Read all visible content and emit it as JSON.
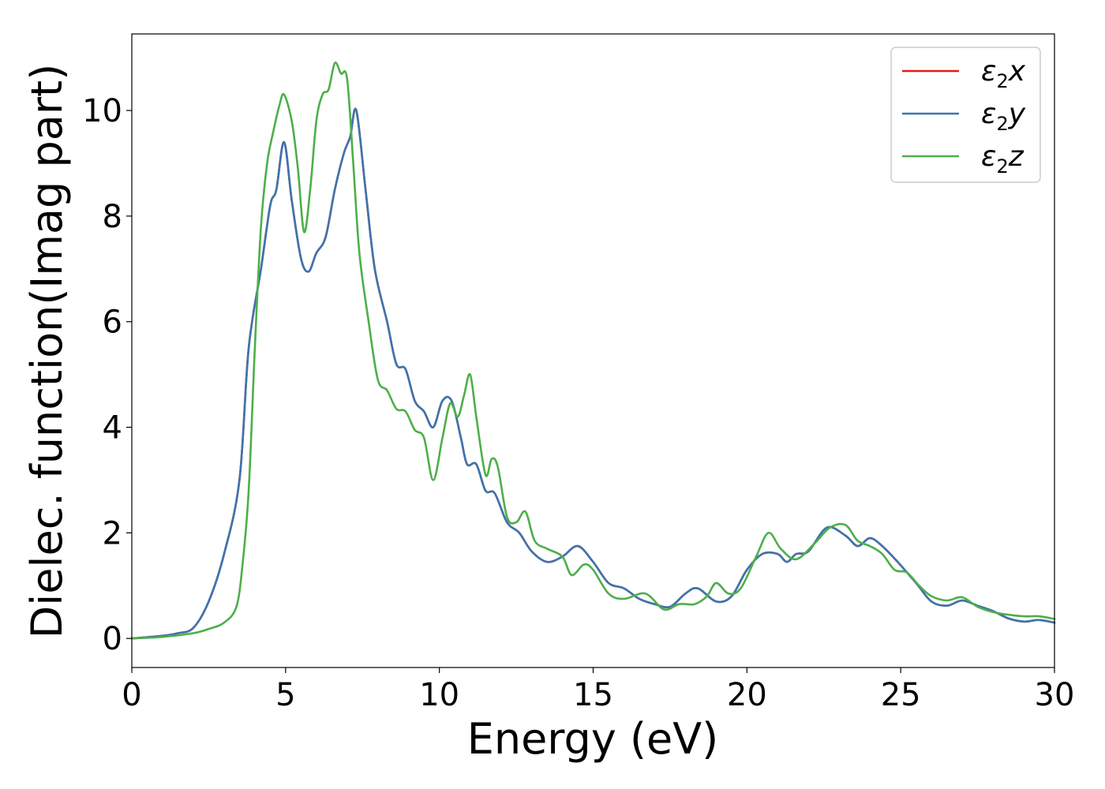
{
  "chart_data": {
    "type": "line",
    "xlabel": "Energy (eV)",
    "ylabel": "Dielec. function(Imag part)",
    "xlim": [
      0,
      30
    ],
    "ylim": [
      -0.55,
      11.45
    ],
    "x_ticks": [
      0,
      5,
      10,
      15,
      20,
      25,
      30
    ],
    "y_ticks": [
      0,
      2,
      4,
      6,
      8,
      10
    ],
    "grid": false,
    "legend_position": "upper right",
    "series": [
      {
        "name": "ε2x",
        "name_base": "ε",
        "name_sub": "2",
        "name_tail": "x",
        "color": "#e41a1c",
        "points": [
          [
            0,
            0
          ],
          [
            1,
            0.05
          ],
          [
            1.5,
            0.1
          ],
          [
            2,
            0.2
          ],
          [
            2.5,
            0.7
          ],
          [
            3,
            1.6
          ],
          [
            3.5,
            3.0
          ],
          [
            3.8,
            5.5
          ],
          [
            4.2,
            7.0
          ],
          [
            4.5,
            8.2
          ],
          [
            4.7,
            8.5
          ],
          [
            4.95,
            9.4
          ],
          [
            5.2,
            8.3
          ],
          [
            5.5,
            7.2
          ],
          [
            5.75,
            6.95
          ],
          [
            6.0,
            7.3
          ],
          [
            6.3,
            7.6
          ],
          [
            6.6,
            8.5
          ],
          [
            6.9,
            9.2
          ],
          [
            7.1,
            9.5
          ],
          [
            7.3,
            10.0
          ],
          [
            7.6,
            8.5
          ],
          [
            7.9,
            7.0
          ],
          [
            8.3,
            6.0
          ],
          [
            8.6,
            5.2
          ],
          [
            8.9,
            5.1
          ],
          [
            9.2,
            4.5
          ],
          [
            9.5,
            4.3
          ],
          [
            9.8,
            4.0
          ],
          [
            10.1,
            4.5
          ],
          [
            10.4,
            4.5
          ],
          [
            10.7,
            3.8
          ],
          [
            10.9,
            3.3
          ],
          [
            11.2,
            3.3
          ],
          [
            11.5,
            2.8
          ],
          [
            11.8,
            2.75
          ],
          [
            12.2,
            2.2
          ],
          [
            12.6,
            2.0
          ],
          [
            13.0,
            1.65
          ],
          [
            13.5,
            1.45
          ],
          [
            14.0,
            1.55
          ],
          [
            14.5,
            1.75
          ],
          [
            15.0,
            1.45
          ],
          [
            15.5,
            1.05
          ],
          [
            16.0,
            0.95
          ],
          [
            16.5,
            0.75
          ],
          [
            17.0,
            0.65
          ],
          [
            17.5,
            0.6
          ],
          [
            18.0,
            0.85
          ],
          [
            18.4,
            0.95
          ],
          [
            19.0,
            0.7
          ],
          [
            19.5,
            0.8
          ],
          [
            20.0,
            1.3
          ],
          [
            20.5,
            1.6
          ],
          [
            21.0,
            1.6
          ],
          [
            21.3,
            1.45
          ],
          [
            21.6,
            1.6
          ],
          [
            22.0,
            1.65
          ],
          [
            22.6,
            2.1
          ],
          [
            23.2,
            1.95
          ],
          [
            23.6,
            1.75
          ],
          [
            24.0,
            1.9
          ],
          [
            24.4,
            1.75
          ],
          [
            24.9,
            1.45
          ],
          [
            25.5,
            1.05
          ],
          [
            26.0,
            0.7
          ],
          [
            26.5,
            0.62
          ],
          [
            27.0,
            0.72
          ],
          [
            27.5,
            0.62
          ],
          [
            28.0,
            0.52
          ],
          [
            28.5,
            0.38
          ],
          [
            29.0,
            0.32
          ],
          [
            29.5,
            0.35
          ],
          [
            30.0,
            0.3
          ]
        ]
      },
      {
        "name": "ε2y",
        "name_base": "ε",
        "name_sub": "2",
        "name_tail": "y",
        "color": "#3b75af",
        "points": [
          [
            0,
            0
          ],
          [
            1,
            0.05
          ],
          [
            1.5,
            0.1
          ],
          [
            2,
            0.2
          ],
          [
            2.5,
            0.7
          ],
          [
            3,
            1.6
          ],
          [
            3.5,
            3.0
          ],
          [
            3.8,
            5.5
          ],
          [
            4.2,
            7.0
          ],
          [
            4.5,
            8.2
          ],
          [
            4.7,
            8.5
          ],
          [
            4.95,
            9.4
          ],
          [
            5.2,
            8.3
          ],
          [
            5.5,
            7.2
          ],
          [
            5.75,
            6.95
          ],
          [
            6.0,
            7.3
          ],
          [
            6.3,
            7.6
          ],
          [
            6.6,
            8.5
          ],
          [
            6.9,
            9.2
          ],
          [
            7.1,
            9.5
          ],
          [
            7.3,
            10.0
          ],
          [
            7.6,
            8.5
          ],
          [
            7.9,
            7.0
          ],
          [
            8.3,
            6.0
          ],
          [
            8.6,
            5.2
          ],
          [
            8.9,
            5.1
          ],
          [
            9.2,
            4.5
          ],
          [
            9.5,
            4.3
          ],
          [
            9.8,
            4.0
          ],
          [
            10.1,
            4.5
          ],
          [
            10.4,
            4.5
          ],
          [
            10.7,
            3.8
          ],
          [
            10.9,
            3.3
          ],
          [
            11.2,
            3.3
          ],
          [
            11.5,
            2.8
          ],
          [
            11.8,
            2.75
          ],
          [
            12.2,
            2.2
          ],
          [
            12.6,
            2.0
          ],
          [
            13.0,
            1.65
          ],
          [
            13.5,
            1.45
          ],
          [
            14.0,
            1.55
          ],
          [
            14.5,
            1.75
          ],
          [
            15.0,
            1.45
          ],
          [
            15.5,
            1.05
          ],
          [
            16.0,
            0.95
          ],
          [
            16.5,
            0.75
          ],
          [
            17.0,
            0.65
          ],
          [
            17.5,
            0.6
          ],
          [
            18.0,
            0.85
          ],
          [
            18.4,
            0.95
          ],
          [
            19.0,
            0.7
          ],
          [
            19.5,
            0.8
          ],
          [
            20.0,
            1.3
          ],
          [
            20.5,
            1.6
          ],
          [
            21.0,
            1.6
          ],
          [
            21.3,
            1.45
          ],
          [
            21.6,
            1.6
          ],
          [
            22.0,
            1.65
          ],
          [
            22.6,
            2.1
          ],
          [
            23.2,
            1.95
          ],
          [
            23.6,
            1.75
          ],
          [
            24.0,
            1.9
          ],
          [
            24.4,
            1.75
          ],
          [
            24.9,
            1.45
          ],
          [
            25.5,
            1.05
          ],
          [
            26.0,
            0.7
          ],
          [
            26.5,
            0.62
          ],
          [
            27.0,
            0.72
          ],
          [
            27.5,
            0.62
          ],
          [
            28.0,
            0.52
          ],
          [
            28.5,
            0.38
          ],
          [
            29.0,
            0.32
          ],
          [
            29.5,
            0.35
          ],
          [
            30.0,
            0.3
          ]
        ]
      },
      {
        "name": "ε2z",
        "name_base": "ε",
        "name_sub": "2",
        "name_tail": "z",
        "color": "#4daf4a",
        "points": [
          [
            0,
            0
          ],
          [
            1,
            0.03
          ],
          [
            2,
            0.1
          ],
          [
            2.5,
            0.18
          ],
          [
            3,
            0.3
          ],
          [
            3.4,
            0.6
          ],
          [
            3.6,
            1.4
          ],
          [
            3.8,
            2.8
          ],
          [
            4.0,
            5.5
          ],
          [
            4.2,
            7.8
          ],
          [
            4.4,
            9.0
          ],
          [
            4.6,
            9.6
          ],
          [
            4.8,
            10.1
          ],
          [
            4.95,
            10.3
          ],
          [
            5.2,
            9.8
          ],
          [
            5.4,
            8.9
          ],
          [
            5.6,
            7.7
          ],
          [
            5.8,
            8.5
          ],
          [
            6.0,
            9.8
          ],
          [
            6.2,
            10.3
          ],
          [
            6.4,
            10.4
          ],
          [
            6.6,
            10.9
          ],
          [
            6.8,
            10.7
          ],
          [
            7.0,
            10.6
          ],
          [
            7.2,
            9.0
          ],
          [
            7.4,
            7.3
          ],
          [
            7.7,
            6.0
          ],
          [
            8.0,
            4.9
          ],
          [
            8.3,
            4.7
          ],
          [
            8.6,
            4.35
          ],
          [
            8.9,
            4.3
          ],
          [
            9.2,
            3.95
          ],
          [
            9.5,
            3.8
          ],
          [
            9.8,
            3.0
          ],
          [
            10.1,
            3.8
          ],
          [
            10.35,
            4.45
          ],
          [
            10.6,
            4.2
          ],
          [
            10.8,
            4.6
          ],
          [
            11.0,
            5.0
          ],
          [
            11.2,
            4.2
          ],
          [
            11.5,
            3.1
          ],
          [
            11.7,
            3.4
          ],
          [
            11.9,
            3.25
          ],
          [
            12.2,
            2.3
          ],
          [
            12.5,
            2.2
          ],
          [
            12.8,
            2.4
          ],
          [
            13.1,
            1.85
          ],
          [
            13.5,
            1.7
          ],
          [
            14.0,
            1.55
          ],
          [
            14.3,
            1.2
          ],
          [
            14.7,
            1.4
          ],
          [
            15.0,
            1.3
          ],
          [
            15.5,
            0.85
          ],
          [
            16.0,
            0.75
          ],
          [
            16.7,
            0.85
          ],
          [
            17.3,
            0.55
          ],
          [
            17.8,
            0.65
          ],
          [
            18.3,
            0.65
          ],
          [
            18.7,
            0.8
          ],
          [
            19.0,
            1.05
          ],
          [
            19.4,
            0.85
          ],
          [
            19.8,
            0.95
          ],
          [
            20.3,
            1.55
          ],
          [
            20.7,
            2.0
          ],
          [
            21.1,
            1.7
          ],
          [
            21.6,
            1.5
          ],
          [
            22.2,
            1.8
          ],
          [
            22.7,
            2.1
          ],
          [
            23.2,
            2.15
          ],
          [
            23.6,
            1.85
          ],
          [
            24.0,
            1.75
          ],
          [
            24.4,
            1.6
          ],
          [
            24.8,
            1.3
          ],
          [
            25.2,
            1.25
          ],
          [
            25.6,
            1.0
          ],
          [
            26.0,
            0.8
          ],
          [
            26.5,
            0.72
          ],
          [
            27.0,
            0.78
          ],
          [
            27.5,
            0.6
          ],
          [
            28.0,
            0.5
          ],
          [
            28.5,
            0.45
          ],
          [
            29.0,
            0.42
          ],
          [
            29.5,
            0.42
          ],
          [
            30.0,
            0.37
          ]
        ]
      }
    ]
  }
}
